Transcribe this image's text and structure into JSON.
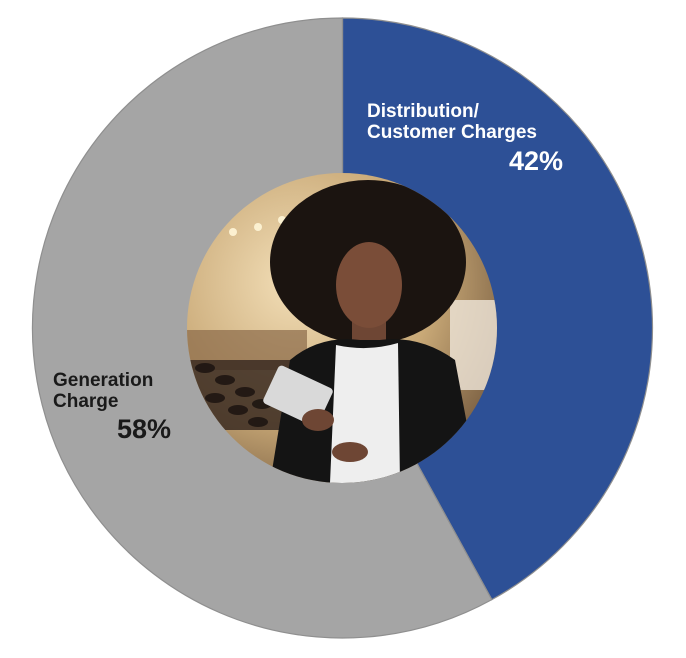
{
  "chart_data": {
    "type": "pie",
    "variant": "donut",
    "title": "",
    "categories": [
      "Distribution/ Customer Charges",
      "Generation Charge"
    ],
    "values": [
      42,
      58
    ],
    "unit": "%",
    "colors": [
      "#2d5096",
      "#a5a5a5"
    ],
    "start_angle_deg": 0,
    "direction": "clockwise",
    "center_image": "photo of smiling woman holding a tablet in a retail store",
    "legend": "none (inline labels)"
  },
  "labels": {
    "distribution": {
      "line1": "Distribution/",
      "line2": "Customer Charges",
      "percent": "42%"
    },
    "generation": {
      "line1": "Generation",
      "line2": "Charge",
      "percent": "58%"
    }
  },
  "colors": {
    "distribution": "#2d5096",
    "generation": "#a5a5a5",
    "edge_shadow": "#8f8f8f",
    "background": "#ffffff"
  },
  "center_photo": {
    "description": "Woman with curly hair in white top and black blazer holding a tablet in a boutique"
  }
}
